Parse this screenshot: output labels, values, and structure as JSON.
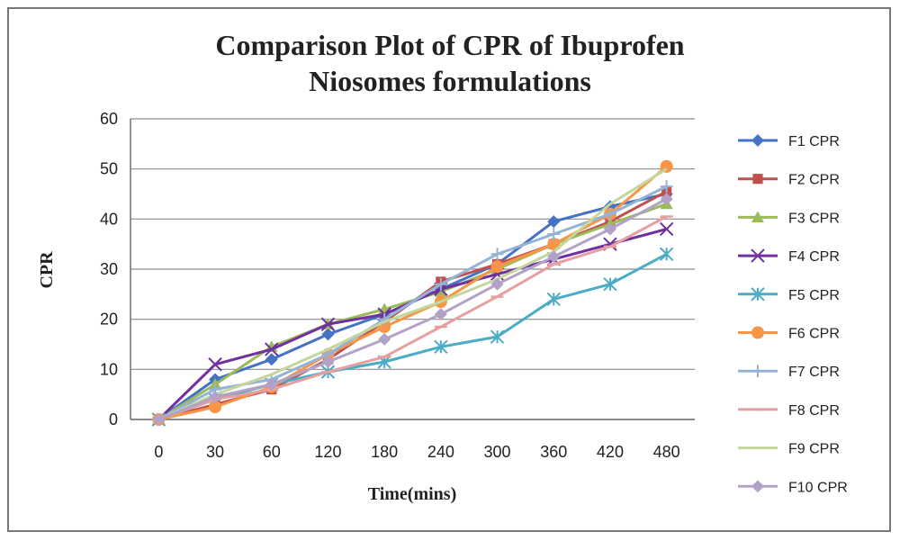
{
  "chart_data": {
    "type": "line",
    "title_lines": [
      "Comparison Plot of CPR of Ibuprofen",
      "Niosomes formulations"
    ],
    "xlabel": "Time(mins)",
    "ylabel": "CPR",
    "categories": [
      "0",
      "30",
      "60",
      "120",
      "180",
      "240",
      "300",
      "360",
      "420",
      "480"
    ],
    "ylim": [
      0,
      60
    ],
    "yticks": [
      0,
      10,
      20,
      30,
      40,
      50,
      60
    ],
    "grid": "horizontal",
    "legend_position": "right",
    "series": [
      {
        "name": "F1 CPR",
        "color": "#4472C4",
        "marker": "diamond",
        "values": [
          0,
          8,
          12,
          17,
          21,
          26,
          31,
          39.5,
          42.5,
          45
        ]
      },
      {
        "name": "F2 CPR",
        "color": "#C0504D",
        "marker": "square",
        "values": [
          0,
          3,
          6,
          12,
          19.5,
          27.5,
          31,
          35,
          39.5,
          45.5
        ]
      },
      {
        "name": "F3 CPR",
        "color": "#9BBB59",
        "marker": "triangle",
        "values": [
          0,
          7,
          14.5,
          19,
          22,
          25.5,
          30,
          35,
          39,
          43
        ]
      },
      {
        "name": "F4 CPR",
        "color": "#7030A0",
        "marker": "x",
        "values": [
          0,
          11,
          14,
          19,
          21,
          26,
          29,
          32,
          35,
          38
        ]
      },
      {
        "name": "F5 CPR",
        "color": "#4BACC6",
        "marker": "star",
        "values": [
          0,
          4,
          7,
          9.5,
          11.5,
          14.5,
          16.5,
          24,
          27,
          33
        ]
      },
      {
        "name": "F6 CPR",
        "color": "#F79646",
        "marker": "circle",
        "values": [
          0,
          2.5,
          6.5,
          13,
          18.5,
          23.5,
          30.5,
          35,
          41,
          50.5
        ]
      },
      {
        "name": "F7 CPR",
        "color": "#95B3D7",
        "marker": "plus",
        "values": [
          0,
          6,
          8,
          13,
          20,
          27,
          33,
          37,
          41,
          46.5
        ]
      },
      {
        "name": "F8 CPR",
        "color": "#E6A0A0",
        "marker": "dash",
        "values": [
          0,
          4,
          6,
          9.5,
          12.5,
          18.5,
          24.5,
          31,
          34.5,
          40.5
        ]
      },
      {
        "name": "F9 CPR",
        "color": "#C3D69B",
        "marker": "none",
        "values": [
          0,
          5,
          9,
          14,
          19.5,
          23.5,
          28,
          33.5,
          43,
          50
        ]
      },
      {
        "name": "F10 CPR",
        "color": "#B3A2C7",
        "marker": "diamond",
        "values": [
          0,
          4.5,
          7,
          11.5,
          16,
          21,
          27,
          32.5,
          38,
          44
        ]
      }
    ]
  }
}
